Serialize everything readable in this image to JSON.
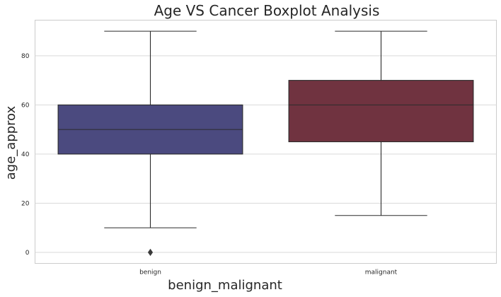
{
  "chart_data": {
    "type": "box",
    "title": "Age VS Cancer Boxplot Analysis",
    "xlabel": "benign_malignant",
    "ylabel": "age_approx",
    "categories": [
      "benign",
      "malignant"
    ],
    "boxes": [
      {
        "category": "benign",
        "whisker_low": 10,
        "q1": 40,
        "median": 50,
        "q3": 60,
        "whisker_high": 90,
        "outliers": [
          0
        ],
        "color": "#4b4a7f"
      },
      {
        "category": "malignant",
        "whisker_low": 15,
        "q1": 45,
        "median": 60,
        "q3": 70,
        "whisker_high": 90,
        "outliers": [],
        "color": "#703340"
      }
    ],
    "yticks": [
      0,
      20,
      40,
      60,
      80
    ],
    "ytick_labels": [
      "0",
      "20",
      "40",
      "60",
      "80"
    ],
    "ylim": [
      -4.5,
      94.5
    ],
    "grid": true
  }
}
